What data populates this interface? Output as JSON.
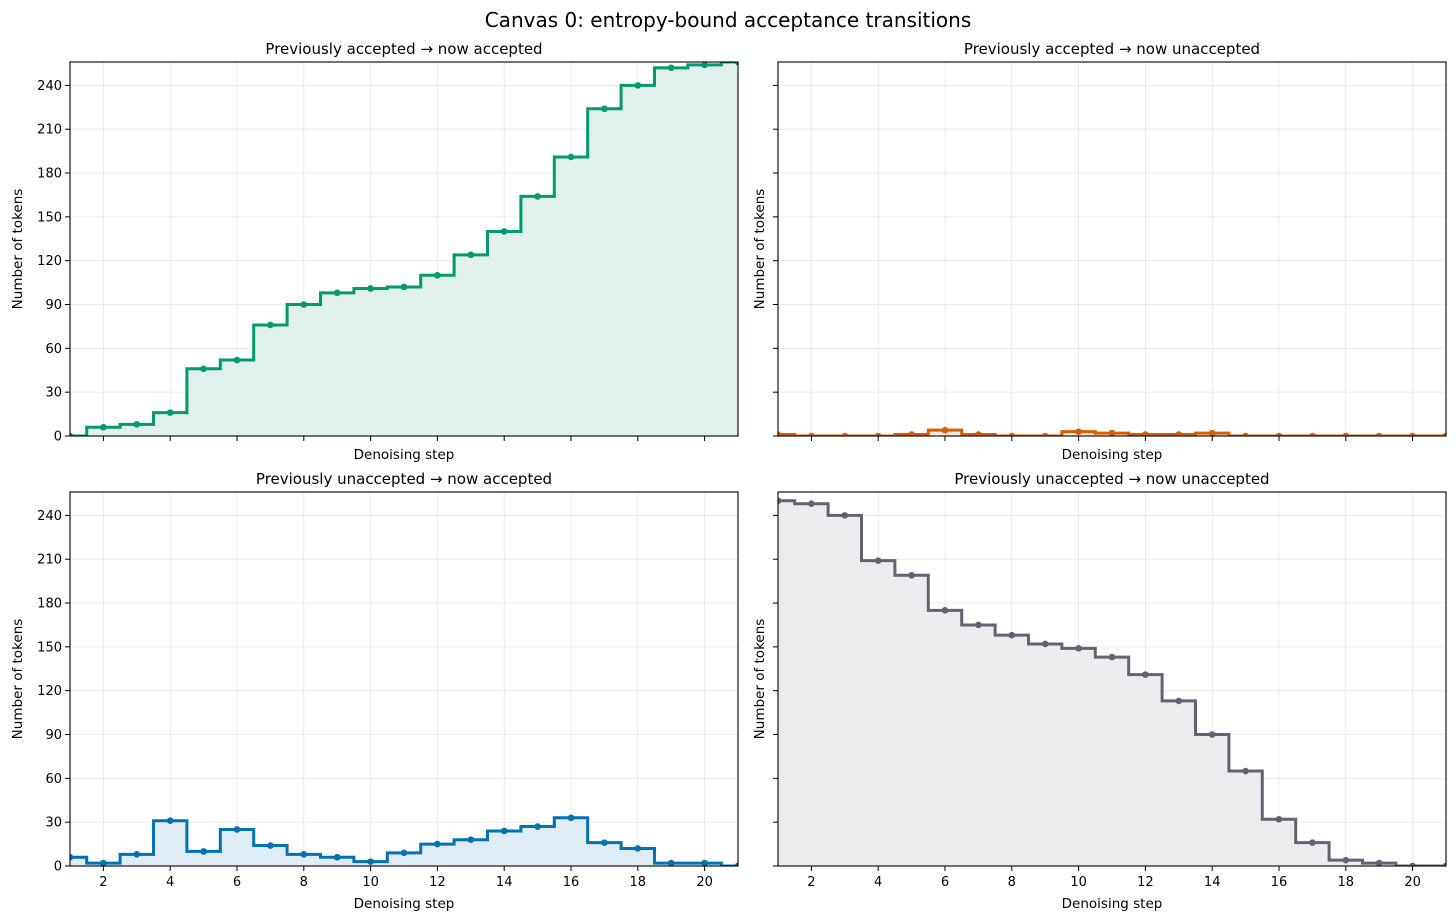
{
  "figure": {
    "title": "Canvas 0: entropy-bound acceptance transitions"
  },
  "chart_data": [
    {
      "type": "line",
      "step": true,
      "title": "Previously accepted → now accepted",
      "xlabel": "Denoising step",
      "ylabel": "Number of tokens",
      "color": "#009a6e",
      "fill": "#dff1ea",
      "x": [
        1,
        2,
        3,
        4,
        5,
        6,
        7,
        8,
        9,
        10,
        11,
        12,
        13,
        14,
        15,
        16,
        17,
        18,
        19,
        20,
        21
      ],
      "values": [
        0,
        6,
        8,
        16,
        46,
        52,
        76,
        90,
        98,
        101,
        102,
        110,
        124,
        140,
        164,
        191,
        224,
        240,
        252,
        254,
        256
      ],
      "xlim": [
        1,
        21
      ],
      "ylim": [
        0,
        256
      ],
      "xticks": [
        2,
        4,
        6,
        8,
        10,
        12,
        14,
        16,
        18,
        20
      ],
      "yticks": [
        0,
        30,
        60,
        90,
        120,
        150,
        180,
        210,
        240
      ],
      "show_xticklabels": false,
      "show_yticklabels": true,
      "grid": true
    },
    {
      "type": "line",
      "step": true,
      "title": "Previously accepted → now unaccepted",
      "xlabel": "Denoising step",
      "ylabel": "Number of tokens",
      "color": "#d55e00",
      "fill": "#fbe6d6",
      "x": [
        1,
        2,
        3,
        4,
        5,
        6,
        7,
        8,
        9,
        10,
        11,
        12,
        13,
        14,
        15,
        16,
        17,
        18,
        19,
        20,
        21
      ],
      "values": [
        1,
        0,
        0,
        0,
        1,
        4,
        1,
        0,
        0,
        3,
        2,
        1,
        1,
        2,
        0,
        0,
        0,
        0,
        0,
        0,
        0
      ],
      "xlim": [
        1,
        21
      ],
      "ylim": [
        0,
        256
      ],
      "xticks": [
        2,
        4,
        6,
        8,
        10,
        12,
        14,
        16,
        18,
        20
      ],
      "yticks": [
        0,
        30,
        60,
        90,
        120,
        150,
        180,
        210,
        240
      ],
      "show_xticklabels": false,
      "show_yticklabels": false,
      "grid": true
    },
    {
      "type": "line",
      "step": true,
      "title": "Previously unaccepted → now accepted",
      "xlabel": "Denoising step",
      "ylabel": "Number of tokens",
      "color": "#0072b2",
      "fill": "#dfecf5",
      "x": [
        1,
        2,
        3,
        4,
        5,
        6,
        7,
        8,
        9,
        10,
        11,
        12,
        13,
        14,
        15,
        16,
        17,
        18,
        19,
        20,
        21
      ],
      "values": [
        6,
        2,
        8,
        31,
        10,
        25,
        14,
        8,
        6,
        3,
        9,
        15,
        18,
        24,
        27,
        33,
        16,
        12,
        2,
        2,
        0
      ],
      "xlim": [
        1,
        21
      ],
      "ylim": [
        0,
        256
      ],
      "xticks": [
        2,
        4,
        6,
        8,
        10,
        12,
        14,
        16,
        18,
        20
      ],
      "yticks": [
        0,
        30,
        60,
        90,
        120,
        150,
        180,
        210,
        240
      ],
      "show_xticklabels": true,
      "show_yticklabels": true,
      "grid": true
    },
    {
      "type": "line",
      "step": true,
      "title": "Previously unaccepted → now unaccepted",
      "xlabel": "Denoising step",
      "ylabel": "Number of tokens",
      "color": "#5f6470",
      "fill": "#ececee",
      "x": [
        1,
        2,
        3,
        4,
        5,
        6,
        7,
        8,
        9,
        10,
        11,
        12,
        13,
        14,
        15,
        16,
        17,
        18,
        19,
        20,
        21
      ],
      "values": [
        250,
        248,
        240,
        209,
        199,
        175,
        165,
        158,
        152,
        149,
        143,
        131,
        113,
        90,
        65,
        32,
        16,
        4,
        2,
        0,
        0
      ],
      "xlim": [
        1,
        21
      ],
      "ylim": [
        0,
        256
      ],
      "xticks": [
        2,
        4,
        6,
        8,
        10,
        12,
        14,
        16,
        18,
        20
      ],
      "yticks": [
        0,
        30,
        60,
        90,
        120,
        150,
        180,
        210,
        240
      ],
      "show_xticklabels": true,
      "show_yticklabels": false,
      "grid": true
    }
  ]
}
